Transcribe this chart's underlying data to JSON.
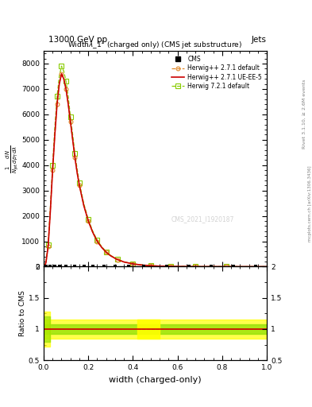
{
  "title_top": "13000 GeV pp",
  "title_right": "Jets",
  "plot_title": "Width$\\lambda$_1$^1$ (charged only) (CMS jet substructure)",
  "xlabel": "width (charged-only)",
  "ylabel_ratio": "Ratio to CMS",
  "right_label_top": "Rivet 3.1.10, ≥ 2.6M events",
  "right_label_bottom": "mcplots.cern.ch [arXiv:1306.3436]",
  "watermark": "CMS_2021_I1920187",
  "color_herwig271_default": "#e08828",
  "color_herwig271_ueee5": "#cc0000",
  "color_herwig721_default": "#88cc00",
  "color_cms": "#000000",
  "ylim_main": [
    0,
    8500
  ],
  "ylim_ratio": [
    0.5,
    2.0
  ],
  "xlim": [
    0,
    1.0
  ],
  "x_fine": [
    0.001,
    0.005,
    0.01,
    0.02,
    0.03,
    0.04,
    0.05,
    0.06,
    0.07,
    0.08,
    0.09,
    0.1,
    0.11,
    0.12,
    0.13,
    0.14,
    0.15,
    0.16,
    0.18,
    0.2,
    0.22,
    0.24,
    0.26,
    0.28,
    0.3,
    0.33,
    0.36,
    0.4,
    0.44,
    0.48,
    0.52,
    0.57,
    0.62,
    0.68,
    0.75,
    0.82,
    0.9,
    1.0
  ],
  "y_271ueee": [
    0,
    50,
    150,
    800,
    2200,
    3800,
    5200,
    6400,
    7200,
    7600,
    7400,
    7000,
    6400,
    5700,
    5000,
    4300,
    3700,
    3200,
    2400,
    1800,
    1350,
    1000,
    760,
    570,
    430,
    280,
    185,
    110,
    65,
    38,
    22,
    12,
    6.5,
    3.0,
    1.2,
    0.5,
    0.15,
    0.02
  ],
  "y_271default": [
    0,
    50,
    150,
    800,
    2200,
    3800,
    5200,
    6400,
    7200,
    7600,
    7400,
    7000,
    6400,
    5700,
    5000,
    4300,
    3700,
    3200,
    2400,
    1800,
    1350,
    1000,
    760,
    570,
    430,
    280,
    185,
    110,
    65,
    38,
    22,
    12,
    6.5,
    3.0,
    1.2,
    0.5,
    0.15,
    0.02
  ],
  "y_721default": [
    0,
    55,
    170,
    870,
    2350,
    4000,
    5500,
    6700,
    7500,
    7900,
    7700,
    7300,
    6700,
    5900,
    5200,
    4450,
    3850,
    3300,
    2480,
    1860,
    1400,
    1040,
    790,
    590,
    445,
    290,
    192,
    114,
    67,
    39,
    23,
    12.5,
    6.8,
    3.1,
    1.25,
    0.52,
    0.16,
    0.02
  ],
  "x_markers_271": [
    0.02,
    0.04,
    0.06,
    0.08,
    0.1,
    0.12,
    0.14,
    0.16,
    0.2,
    0.24,
    0.28,
    0.33,
    0.4,
    0.48,
    0.57,
    0.68,
    0.82
  ],
  "y_markers_271": [
    800,
    3800,
    6400,
    7600,
    7000,
    5700,
    4300,
    3200,
    1800,
    1000,
    570,
    280,
    110,
    38,
    12,
    3.0,
    0.5
  ],
  "x_markers_721": [
    0.02,
    0.04,
    0.06,
    0.08,
    0.1,
    0.12,
    0.14,
    0.16,
    0.2,
    0.24,
    0.28,
    0.33,
    0.4,
    0.48,
    0.57,
    0.68,
    0.82
  ],
  "y_markers_721": [
    870,
    4000,
    6700,
    7900,
    7300,
    5900,
    4450,
    3300,
    1860,
    1040,
    590,
    290,
    114,
    39,
    12.5,
    3.1,
    0.52
  ],
  "cms_x": [
    0.01,
    0.03,
    0.05,
    0.07,
    0.1,
    0.14,
    0.18,
    0.22,
    0.27,
    0.32,
    0.38,
    0.45,
    0.55,
    0.65,
    0.75,
    0.85,
    0.95
  ],
  "yticks_main": [
    0,
    1000,
    2000,
    3000,
    4000,
    5000,
    6000,
    7000,
    8000
  ],
  "ratio_yticks": [
    0.5,
    1.0,
    1.5,
    2.0
  ]
}
